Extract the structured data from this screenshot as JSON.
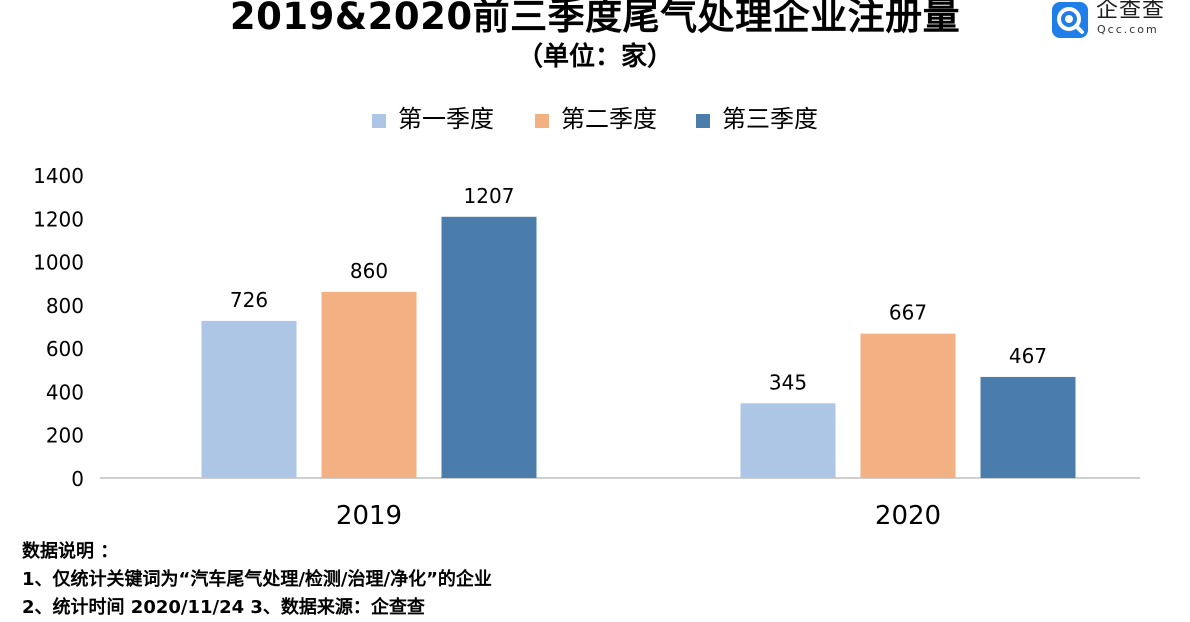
{
  "title": "2019&2020前三季度尾气处理企业注册量",
  "subtitle": "（单位：家）",
  "logo": {
    "name": "企查查",
    "domain": "Qcc.com"
  },
  "colors": {
    "q1": "#adc6e5",
    "q2": "#f3b083",
    "q3": "#4a7dab",
    "axis": "#bfbfbf"
  },
  "chart_data": {
    "type": "bar",
    "categories": [
      "2019",
      "2020"
    ],
    "series": [
      {
        "name": "第一季度",
        "values": [
          726,
          345
        ]
      },
      {
        "name": "第二季度",
        "values": [
          860,
          667
        ]
      },
      {
        "name": "第三季度",
        "values": [
          1207,
          467
        ]
      }
    ],
    "yticks": [
      "0",
      "200",
      "400",
      "600",
      "800",
      "1000",
      "1200",
      "1400"
    ],
    "ylim": [
      0,
      1400
    ],
    "legend": "top",
    "grid": false
  },
  "notes": {
    "heading": "数据说明 ：",
    "line1": "1、仅统计关键词为“汽车尾气处理/检测/治理/净化”的企业",
    "line2": "2、统计时间 2020/11/24   3、数据来源：企查查"
  }
}
